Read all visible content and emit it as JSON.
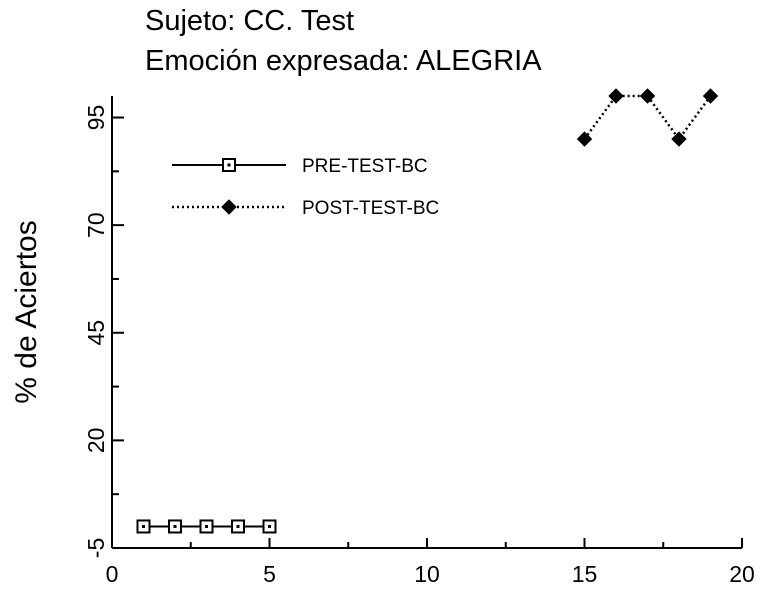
{
  "chart_data": {
    "type": "line",
    "title": [
      "Sujeto: CC. Test",
      "Emoción expresada: ALEGRIA"
    ],
    "xlabel": "",
    "ylabel": "% de Aciertos",
    "xlim": [
      0,
      20
    ],
    "ylim": [
      -5,
      100
    ],
    "x_ticks": [
      0,
      5,
      10,
      15,
      20
    ],
    "y_ticks": [
      -5,
      20,
      45,
      70,
      95
    ],
    "legend_position": "top-left",
    "series": [
      {
        "name": "PRE-TEST-BC",
        "marker": "open-square",
        "line_style": "solid",
        "color": "#000000",
        "x": [
          1,
          2,
          3,
          4,
          5
        ],
        "y": [
          0,
          0,
          0,
          0,
          0
        ]
      },
      {
        "name": "POST-TEST-BC",
        "marker": "filled-diamond",
        "line_style": "dotted",
        "color": "#000000",
        "x": [
          15,
          16,
          17,
          18,
          19
        ],
        "y": [
          90,
          100,
          100,
          90,
          100
        ]
      }
    ]
  }
}
